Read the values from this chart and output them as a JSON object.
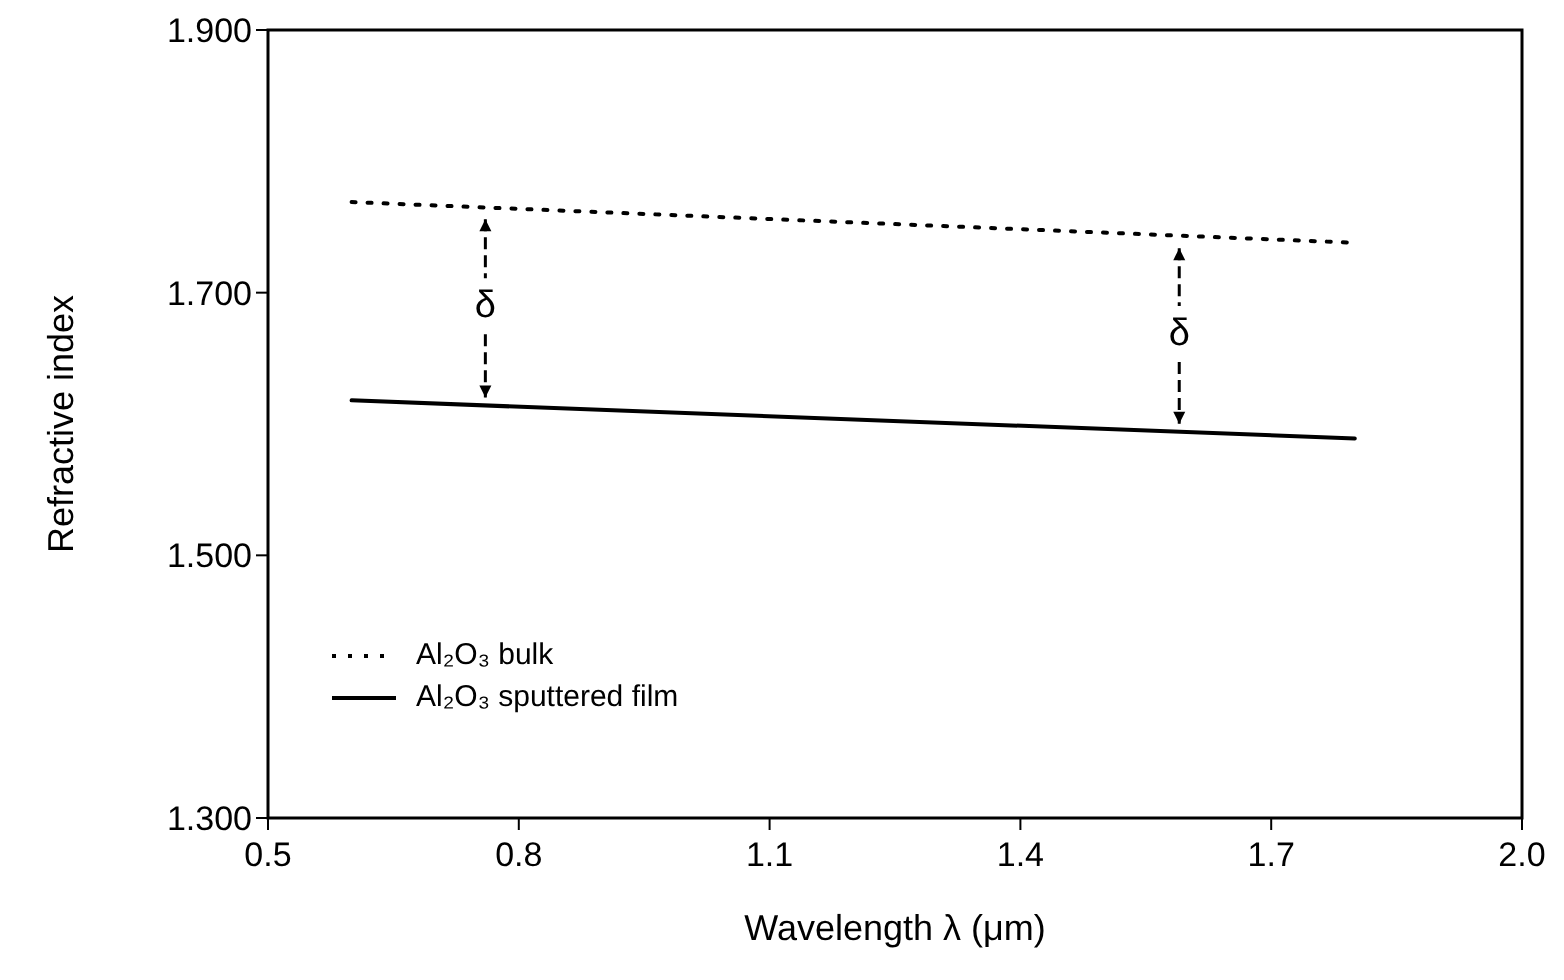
{
  "chart_data": {
    "type": "line",
    "xlabel": "Wavelength λ (μm)",
    "ylabel": "Refractive index",
    "xlim": [
      0.5,
      2.0
    ],
    "xticks": [
      {
        "value": 0.5,
        "label": "0.5"
      },
      {
        "value": 0.8,
        "label": "0.8"
      },
      {
        "value": 1.1,
        "label": "1.1"
      },
      {
        "value": 1.4,
        "label": "1.4"
      },
      {
        "value": 1.7,
        "label": "1.7"
      },
      {
        "value": 2.0,
        "label": "2.0"
      }
    ],
    "ylim": [
      1.3,
      1.9
    ],
    "yticks": [
      {
        "value": 1.3,
        "label": "1.300"
      },
      {
        "value": 1.5,
        "label": "1.500"
      },
      {
        "value": 1.7,
        "label": "1.700"
      },
      {
        "value": 1.9,
        "label": "1.900"
      }
    ],
    "x": [
      0.6,
      1.8
    ],
    "series": [
      {
        "name": "Al₂O₃ bulk",
        "color": "#000000",
        "values": [
          1.769,
          1.738
        ],
        "line_style": "dotted"
      },
      {
        "name": "Al₂O₃ sputtered film",
        "color": "#000000",
        "values": [
          1.618,
          1.589
        ],
        "line_style": "solid"
      }
    ],
    "annotations": [
      {
        "text": "δ",
        "x": 0.76,
        "y": 1.765
      },
      {
        "text": "δ",
        "x": 1.59,
        "y": 1.743
      }
    ],
    "legend": "bottom left",
    "grid": false,
    "marker": "none"
  }
}
